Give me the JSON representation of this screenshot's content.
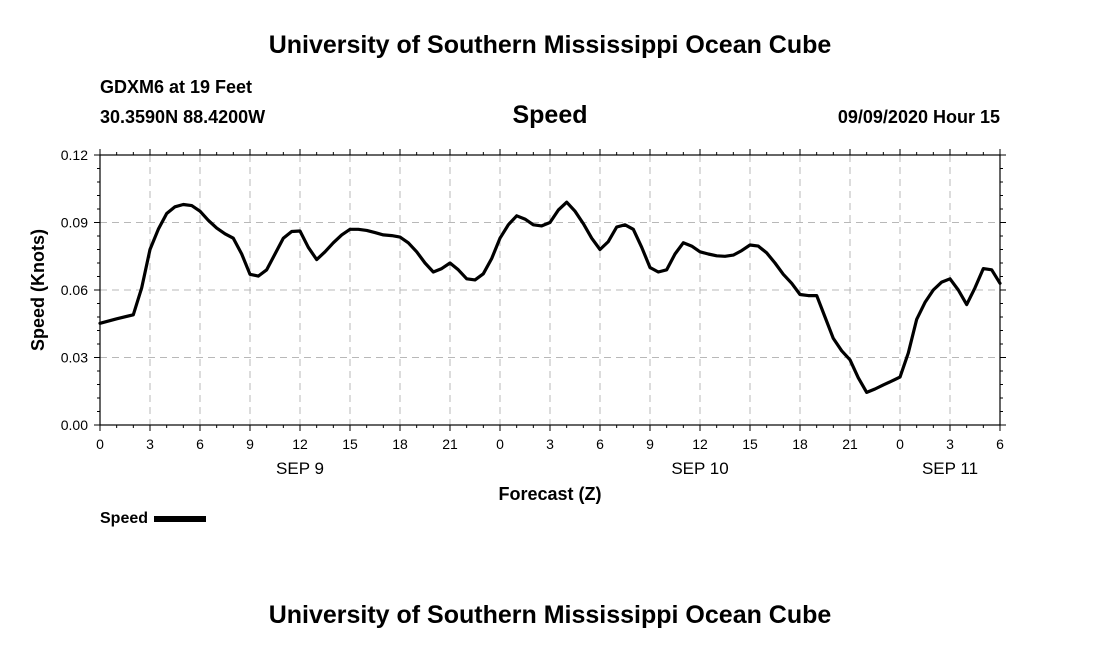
{
  "header": {
    "title_top": "University of Southern Mississippi Ocean Cube",
    "station": "GDXM6 at 19 Feet",
    "coords": "30.3590N 88.4200W",
    "variable": "Speed",
    "datetime": "09/09/2020 Hour 15"
  },
  "footer": {
    "title_bottom": "University of Southern Mississippi Ocean Cube"
  },
  "legend": {
    "label": "Speed"
  },
  "chart_data": {
    "type": "line",
    "title": "Speed",
    "xlabel": "Forecast (Z)",
    "ylabel": "Speed (Knots)",
    "ylim": [
      0,
      0.12
    ],
    "xlim": [
      0,
      54
    ],
    "grid": true,
    "legend_position": "bottom-left",
    "y_ticks": [
      "0.00",
      "0.03",
      "0.06",
      "0.09",
      "0.12"
    ],
    "x_ticks": [
      {
        "x": 0,
        "label": "0"
      },
      {
        "x": 3,
        "label": "3"
      },
      {
        "x": 6,
        "label": "6"
      },
      {
        "x": 9,
        "label": "9"
      },
      {
        "x": 12,
        "label": "12"
      },
      {
        "x": 15,
        "label": "15"
      },
      {
        "x": 18,
        "label": "18"
      },
      {
        "x": 21,
        "label": "21"
      },
      {
        "x": 24,
        "label": "0"
      },
      {
        "x": 27,
        "label": "3"
      },
      {
        "x": 30,
        "label": "6"
      },
      {
        "x": 33,
        "label": "9"
      },
      {
        "x": 36,
        "label": "12"
      },
      {
        "x": 39,
        "label": "15"
      },
      {
        "x": 42,
        "label": "18"
      },
      {
        "x": 45,
        "label": "21"
      },
      {
        "x": 48,
        "label": "0"
      },
      {
        "x": 51,
        "label": "3"
      },
      {
        "x": 54,
        "label": "6"
      }
    ],
    "date_labels": [
      {
        "x": 12,
        "label": "SEP 9"
      },
      {
        "x": 36,
        "label": "SEP 10"
      },
      {
        "x": 51,
        "label": "SEP 11"
      }
    ],
    "series": [
      {
        "name": "Speed",
        "color": "#000000",
        "x": [
          0,
          1,
          2,
          2.5,
          3,
          3.5,
          4,
          4.5,
          5,
          5.5,
          6,
          6.5,
          7,
          7.5,
          8,
          8.5,
          9,
          9.5,
          10,
          10.5,
          11,
          11.5,
          12,
          12.5,
          13,
          13.5,
          14,
          14.5,
          15,
          15.5,
          16,
          16.5,
          17,
          17.5,
          18,
          18.5,
          19,
          19.5,
          20,
          20.5,
          21,
          21.5,
          22,
          22.5,
          23,
          23.5,
          24,
          24.5,
          25,
          25.5,
          26,
          26.5,
          27,
          27.5,
          28,
          28.5,
          29,
          29.5,
          30,
          30.5,
          31,
          31.5,
          32,
          32.5,
          33,
          33.5,
          34,
          34.5,
          35,
          35.5,
          36,
          36.5,
          37,
          37.5,
          38,
          38.5,
          39,
          39.5,
          40,
          40.5,
          41,
          41.5,
          42,
          42.5,
          43,
          43.5,
          44,
          44.5,
          45,
          45.5,
          46,
          46.5,
          47,
          47.5,
          48,
          48.5,
          49,
          49.5,
          50,
          50.5,
          51,
          51.5,
          52,
          52.5,
          53,
          53.5,
          54
        ],
        "values": [
          0.0452,
          0.0472,
          0.049,
          0.061,
          0.078,
          0.087,
          0.094,
          0.097,
          0.098,
          0.0975,
          0.095,
          0.091,
          0.0875,
          0.085,
          0.083,
          0.076,
          0.067,
          0.0662,
          0.069,
          0.076,
          0.083,
          0.086,
          0.0862,
          0.079,
          0.0735,
          0.077,
          0.081,
          0.0845,
          0.087,
          0.087,
          0.0865,
          0.0855,
          0.0845,
          0.0842,
          0.0835,
          0.081,
          0.077,
          0.072,
          0.068,
          0.0695,
          0.072,
          0.069,
          0.065,
          0.0645,
          0.0672,
          0.074,
          0.083,
          0.089,
          0.093,
          0.0915,
          0.089,
          0.0885,
          0.09,
          0.0955,
          0.099,
          0.095,
          0.0895,
          0.083,
          0.078,
          0.0815,
          0.088,
          0.089,
          0.087,
          0.079,
          0.07,
          0.068,
          0.069,
          0.076,
          0.081,
          0.0795,
          0.077,
          0.076,
          0.0752,
          0.075,
          0.0755,
          0.0775,
          0.08,
          0.0795,
          0.0765,
          0.072,
          0.067,
          0.063,
          0.058,
          0.0575,
          0.0575,
          0.048,
          0.0385,
          0.033,
          0.029,
          0.021,
          0.0145,
          0.016,
          0.0178,
          0.0195,
          0.0213,
          0.032,
          0.047,
          0.0545,
          0.06,
          0.0635,
          0.065,
          0.06,
          0.0535,
          0.061,
          0.0695,
          0.069,
          0.063
        ]
      }
    ]
  }
}
